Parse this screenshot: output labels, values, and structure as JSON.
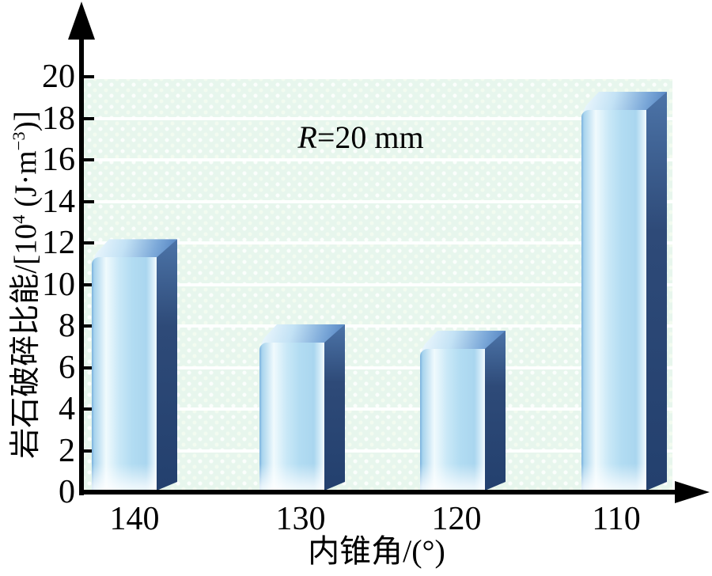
{
  "chart_data": {
    "type": "bar",
    "title": "",
    "categories": [
      "140",
      "130",
      "120",
      "110"
    ],
    "values": [
      11.3,
      7.2,
      6.9,
      18.4
    ],
    "xlabel": "内锥角/(°)",
    "ylabel": "岩石破碎比能/[10^4 (J·m^-3)]",
    "ylim": [
      0,
      20
    ],
    "yticks": [
      0,
      2,
      4,
      6,
      8,
      10,
      12,
      14,
      16,
      18,
      20
    ],
    "grid": "horizontal white gridlines at every y tick on mint patterned background",
    "legend": null,
    "annotations": [
      "R=20 mm"
    ],
    "bar_style": "3d beveled light-blue columns with dark navy side faces"
  },
  "labels": {
    "annotation": {
      "var": "R",
      "rest": "=20 mm"
    },
    "x_title": "内锥角/(°)",
    "y_title": {
      "p1": "岩石破碎比能/[10",
      "sup1": "4",
      "p2": " (J·m",
      "sup2": "−3",
      "p3": ")]"
    }
  },
  "colors": {
    "plot_bg": "#e7f6ed",
    "grid_line": "#ffffff",
    "axis": "#000000",
    "text": "#000000",
    "bar_front_edge": "#79b0dd",
    "bar_front_highlight": "#f0fafd",
    "bar_front_mid": "#aad6ef",
    "bar_side_top": "#4c74a8",
    "bar_side_bottom": "#23406e",
    "bar_top_light": "#eef8fd",
    "bar_top_dark": "#5585c2"
  }
}
